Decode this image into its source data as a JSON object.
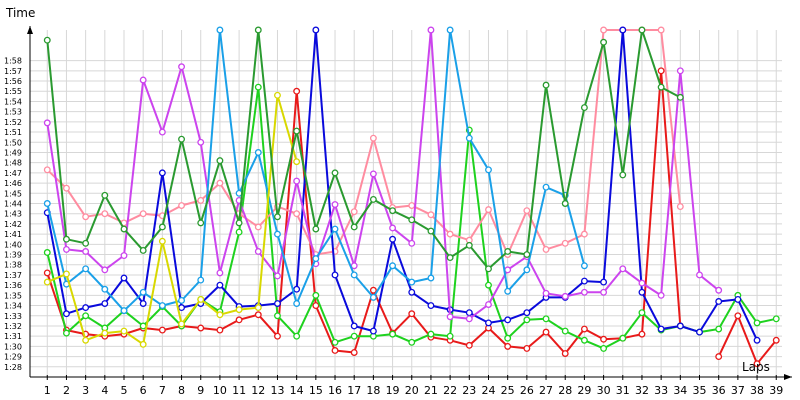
{
  "chart_data": {
    "type": "line",
    "ylabel": "Time",
    "xlabel": "Laps",
    "x": [
      1,
      2,
      3,
      4,
      5,
      6,
      7,
      8,
      9,
      10,
      11,
      12,
      13,
      14,
      15,
      16,
      17,
      18,
      19,
      20,
      21,
      22,
      23,
      24,
      25,
      26,
      27,
      28,
      29,
      30,
      31,
      32,
      33,
      34,
      35,
      36,
      37,
      38,
      39
    ],
    "x_tick_labels": [
      "1",
      "2",
      "3",
      "4",
      "5",
      "6",
      "7",
      "8",
      "9",
      "10",
      "11",
      "12",
      "13",
      "14",
      "15",
      "16",
      "17",
      "18",
      "19",
      "20",
      "21",
      "22",
      "23",
      "24",
      "25",
      "26",
      "27",
      "28",
      "29",
      "30",
      "31",
      "32",
      "33",
      "34",
      "35",
      "36",
      "37",
      "38",
      "39"
    ],
    "y_tick_labels": [
      "1:28",
      "1:29",
      "1:30",
      "1:31",
      "1:32",
      "1:33",
      "1:34",
      "1:35",
      "1:36",
      "1:37",
      "1:38",
      "1:39",
      "1:40",
      "1:41",
      "1:42",
      "1:43",
      "1:44",
      "1:45",
      "1:46",
      "1:47",
      "1:48",
      "1:49",
      "1:50",
      "1:51",
      "1:52",
      "1:53",
      "1:54",
      "1:55",
      "1:56",
      "1:57",
      "1:58"
    ],
    "y_tick_seconds": [
      88,
      89,
      90,
      91,
      92,
      93,
      94,
      95,
      96,
      97,
      98,
      99,
      100,
      101,
      102,
      103,
      104,
      105,
      106,
      107,
      108,
      109,
      110,
      111,
      112,
      113,
      114,
      115,
      116,
      117,
      118
    ],
    "ylim": [
      87,
      121
    ],
    "xlim": [
      0.1,
      39.3
    ],
    "grid": true,
    "legend": "none",
    "series": [
      {
        "color": "#e81a1a",
        "values": [
          97.2,
          91.6,
          91.2,
          91.0,
          91.2,
          91.8,
          91.6,
          92.0,
          91.8,
          91.6,
          92.6,
          93.1,
          91.0,
          115.0,
          94.0,
          89.6,
          89.4,
          95.5,
          91.3,
          93.2,
          90.9,
          90.6,
          90.1,
          91.8,
          90.0,
          89.8,
          91.4,
          89.3,
          91.7,
          90.7,
          90.8,
          91.2,
          117.0,
          92.0,
          null,
          89.0,
          93.0,
          88.3,
          90.6
        ]
      },
      {
        "color": "#1ed21e",
        "values": [
          99.2,
          91.3,
          93.0,
          91.8,
          93.5,
          92.0,
          93.9,
          92.0,
          94.6,
          93.4,
          101.2,
          115.4,
          93.0,
          91.0,
          95.0,
          90.4,
          91.0,
          91.0,
          91.2,
          90.4,
          91.2,
          91.0,
          111.2,
          96.0,
          90.8,
          92.6,
          92.7,
          91.5,
          90.6,
          89.8,
          90.8,
          93.3,
          91.6,
          92.0,
          91.4,
          91.7,
          95.0,
          92.3,
          92.7
        ]
      },
      {
        "color": "#ff8ca0",
        "values": [
          107.3,
          105.5,
          102.7,
          103.0,
          102.1,
          103.0,
          102.8,
          103.8,
          104.3,
          106.0,
          103.0,
          101.7,
          103.7,
          103.0,
          99.0,
          99.3,
          103.2,
          110.4,
          103.6,
          103.8,
          102.9,
          101.0,
          100.4,
          103.4,
          99.0,
          103.3,
          99.5,
          100.1,
          101.0,
          121.0,
          121.0,
          121.0,
          121.0,
          103.7,
          null,
          null,
          null,
          null,
          null
        ]
      },
      {
        "color": "#0a0adc",
        "values": [
          103.1,
          93.2,
          93.8,
          94.2,
          96.7,
          94.2,
          107.0,
          93.8,
          94.2,
          96.0,
          93.9,
          94.0,
          94.2,
          95.6,
          121.0,
          97.0,
          92.0,
          91.5,
          100.5,
          95.3,
          94.0,
          93.6,
          93.3,
          92.3,
          92.6,
          93.3,
          94.8,
          94.8,
          96.4,
          96.3,
          121.0,
          95.3,
          91.7,
          92.0,
          91.4,
          94.4,
          94.6,
          90.6,
          null
        ]
      },
      {
        "color": "#cc44ee",
        "values": [
          111.9,
          99.5,
          99.3,
          97.5,
          98.9,
          116.1,
          111.0,
          117.4,
          110.0,
          97.2,
          104.3,
          99.3,
          96.9,
          106.2,
          98.1,
          103.9,
          97.9,
          106.9,
          101.6,
          100.1,
          121.0,
          92.9,
          92.7,
          94.1,
          97.5,
          98.8,
          95.2,
          94.9,
          95.3,
          95.3,
          97.6,
          96.2,
          95.0,
          117.0,
          97.0,
          95.5,
          null,
          null,
          null
        ]
      },
      {
        "color": "#1aa0e8",
        "values": [
          104.0,
          96.1,
          97.6,
          95.6,
          93.5,
          95.3,
          94.0,
          94.5,
          96.5,
          121.0,
          105.0,
          109.0,
          101.0,
          94.2,
          98.6,
          101.5,
          97.0,
          94.8,
          97.9,
          96.3,
          96.7,
          121.0,
          110.4,
          107.3,
          95.4,
          97.5,
          105.6,
          104.8,
          97.9,
          null,
          null,
          null,
          null,
          null,
          null,
          null,
          null,
          null,
          null
        ]
      },
      {
        "color": "#d8d800",
        "values": [
          96.3,
          97.1,
          90.6,
          91.3,
          91.5,
          90.2,
          100.3,
          92.2,
          94.6,
          93.1,
          93.6,
          93.8,
          114.6,
          108.1,
          null,
          null,
          null,
          null,
          null,
          null,
          null,
          null,
          null,
          null,
          null,
          null,
          null,
          null,
          null,
          null,
          null,
          null,
          null,
          null,
          null,
          null,
          null,
          null,
          null
        ]
      },
      {
        "color": "#2a9a30",
        "values": [
          120.0,
          100.5,
          100.1,
          104.8,
          101.5,
          99.4,
          101.7,
          110.3,
          102.1,
          108.2,
          102.1,
          121.0,
          102.7,
          111.1,
          101.5,
          107.0,
          101.7,
          104.4,
          103.3,
          102.4,
          101.3,
          98.7,
          99.9,
          97.6,
          99.3,
          99.0,
          115.6,
          104.0,
          113.4,
          119.8,
          106.8,
          121.0,
          115.4,
          114.4,
          null,
          null,
          null,
          null,
          null
        ]
      }
    ]
  }
}
